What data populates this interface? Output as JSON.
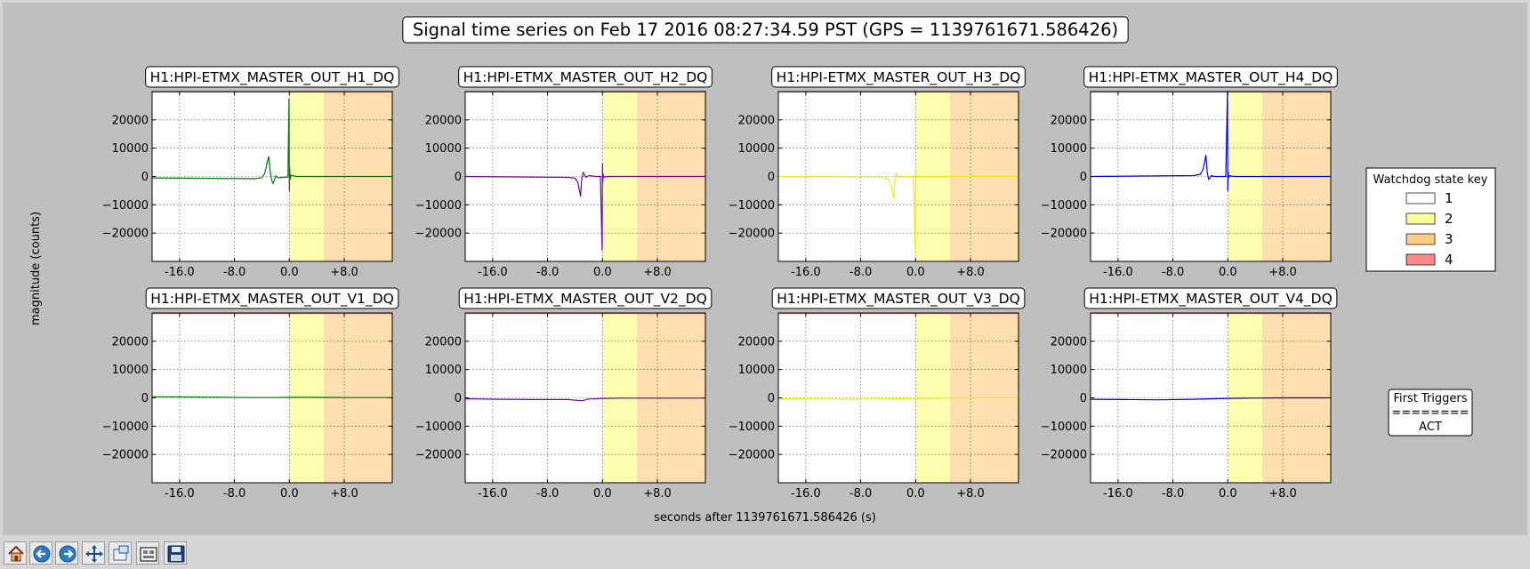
{
  "chart_data": {
    "type": "line",
    "title": "Signal time series on Feb 17 2016 08:27:34.59 PST (GPS = 1139761671.586426)",
    "xlabel": "seconds after 1139761671.586426 (s)",
    "ylabel": "magnitude (counts)",
    "xlim": [
      -20,
      15
    ],
    "ylim": [
      -30000,
      30000
    ],
    "xticks": [
      -16,
      -8,
      0,
      8
    ],
    "xtick_labels": [
      "-16.0",
      "-8.0",
      "0.0",
      "+8.0"
    ],
    "yticks": [
      -20000,
      -10000,
      0,
      10000,
      20000
    ],
    "ytick_labels": [
      "−20000",
      "−10000",
      "0",
      "10000",
      "20000"
    ],
    "grid": true,
    "state_bands": [
      {
        "state": "2",
        "x0": 0,
        "x1": 5,
        "color": "#ffffb0"
      },
      {
        "state": "3",
        "x0": 5,
        "x1": 15,
        "color": "#ffdeaf"
      }
    ],
    "panels": [
      {
        "name": "H1:HPI-ETMX_MASTER_OUT_H1_DQ",
        "color": "#007700",
        "x": [
          -20,
          -5,
          -4,
          -3.6,
          -3.4,
          -3.2,
          -3.0,
          -2.8,
          -2.6,
          -2.4,
          -2.2,
          -2.0,
          -1.6,
          -1.0,
          -0.2,
          -0.05,
          0,
          0.05,
          0.1,
          0.2,
          1,
          15
        ],
        "y": [
          -500,
          -800,
          -400,
          1000,
          3000,
          5500,
          7000,
          2000,
          -1000,
          -2500,
          -1500,
          200,
          -500,
          -300,
          -200,
          27500,
          -5000,
          3000,
          -1000,
          500,
          0,
          0
        ]
      },
      {
        "name": "H1:HPI-ETMX_MASTER_OUT_H2_DQ",
        "color": "#7700aa",
        "x": [
          -20,
          -5,
          -4,
          -3.6,
          -3.4,
          -3.2,
          -3.0,
          -2.8,
          -2.6,
          -2.4,
          -2.0,
          -1.0,
          -0.3,
          -0.05,
          0,
          0.05,
          0.1,
          0.2,
          1,
          15
        ],
        "y": [
          0,
          -300,
          -600,
          -2000,
          -4500,
          -7000,
          -500,
          1500,
          500,
          -300,
          300,
          0,
          0,
          -26000,
          4500,
          -2000,
          800,
          -200,
          0,
          0
        ]
      },
      {
        "name": "H1:HPI-ETMX_MASTER_OUT_H3_DQ",
        "color": "#eeee00",
        "x": [
          -20,
          -5,
          -4,
          -3.6,
          -3.4,
          -3.2,
          -3.0,
          -2.8,
          -2.6,
          -2.4,
          -2.0,
          -1.0,
          -0.3,
          -0.05,
          0,
          0.05,
          0.1,
          0.2,
          1,
          15
        ],
        "y": [
          0,
          -200,
          -800,
          -2500,
          -5000,
          -7500,
          -1000,
          1200,
          400,
          -300,
          0,
          0,
          0,
          -27000,
          2000,
          -800,
          300,
          -100,
          0,
          0
        ]
      },
      {
        "name": "H1:HPI-ETMX_MASTER_OUT_H4_DQ",
        "color": "#0000dd",
        "x": [
          -20,
          -5,
          -4,
          -3.6,
          -3.4,
          -3.2,
          -3.0,
          -2.8,
          -2.6,
          -2.4,
          -2.0,
          -1.0,
          -0.3,
          -0.05,
          0,
          0.05,
          0.1,
          0.2,
          1,
          15
        ],
        "y": [
          0,
          300,
          800,
          2500,
          5000,
          7500,
          1500,
          -1000,
          -500,
          300,
          0,
          0,
          0,
          30000,
          -5000,
          1500,
          -500,
          200,
          0,
          0
        ]
      },
      {
        "name": "H1:HPI-ETMX_MASTER_OUT_V1_DQ",
        "color": "#007700",
        "x": [
          -20,
          -15,
          -10,
          -5,
          -2,
          0,
          3,
          8,
          15
        ],
        "y": [
          400,
          300,
          200,
          100,
          100,
          200,
          200,
          100,
          100
        ]
      },
      {
        "name": "H1:HPI-ETMX_MASTER_OUT_V2_DQ",
        "color": "#7700aa",
        "x": [
          -20,
          -15,
          -10,
          -5,
          -3,
          -2,
          0,
          3,
          8,
          15
        ],
        "y": [
          -300,
          -500,
          -600,
          -600,
          -1000,
          -400,
          -200,
          -100,
          -100,
          -100
        ]
      },
      {
        "name": "H1:HPI-ETMX_MASTER_OUT_V3_DQ",
        "color": "#eeee00",
        "x": [
          -20,
          -15,
          -10,
          -5,
          -2,
          0,
          3,
          8,
          15
        ],
        "y": [
          -300,
          -400,
          -500,
          -400,
          -300,
          -200,
          -100,
          0,
          0
        ]
      },
      {
        "name": "H1:HPI-ETMX_MASTER_OUT_V4_DQ",
        "color": "#0000dd",
        "x": [
          -20,
          -15,
          -10,
          -5,
          -2,
          0,
          3,
          8,
          15
        ],
        "y": [
          -500,
          -600,
          -700,
          -500,
          -300,
          -200,
          -100,
          0,
          0
        ]
      }
    ],
    "legend": {
      "title": "Watchdog state key",
      "placement": "right",
      "entries": [
        {
          "label": "1",
          "color": "#ffffff"
        },
        {
          "label": "2",
          "color": "#ffff99"
        },
        {
          "label": "3",
          "color": "#ffcc88"
        },
        {
          "label": "4",
          "color": "#ff8888"
        }
      ]
    },
    "first_triggers": {
      "title": "First Triggers",
      "separator": "========",
      "value": "ACT"
    }
  },
  "toolbar": {
    "buttons": [
      {
        "name": "home-button",
        "icon": "home-icon"
      },
      {
        "name": "back-button",
        "icon": "arrow-left-icon"
      },
      {
        "name": "forward-button",
        "icon": "arrow-right-icon"
      },
      {
        "name": "pan-button",
        "icon": "move-icon"
      },
      {
        "name": "zoom-button",
        "icon": "zoom-rect-icon"
      },
      {
        "name": "subplots-button",
        "icon": "subplots-icon"
      },
      {
        "name": "save-button",
        "icon": "save-icon"
      }
    ]
  }
}
